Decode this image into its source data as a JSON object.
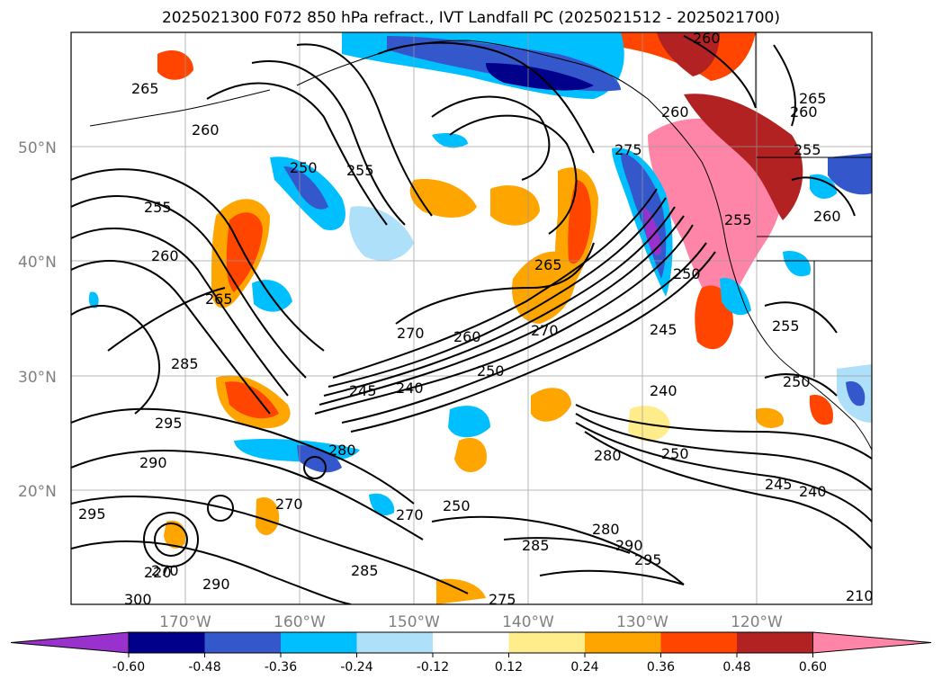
{
  "title": "2025021300 F072 850 hPa refract., IVT Landfall PC (2025021512 - 2025021700)",
  "map": {
    "lat_labels": [
      "50°N",
      "40°N",
      "30°N",
      "20°N"
    ],
    "lon_labels": [
      "170°W",
      "160°W",
      "150°W",
      "140°W",
      "130°W",
      "120°W"
    ],
    "grid": true,
    "contour_labels": [
      "265",
      "260",
      "250",
      "255",
      "255",
      "260",
      "265",
      "285",
      "295",
      "290",
      "295",
      "270",
      "270",
      "290",
      "300",
      "280",
      "270",
      "270",
      "245",
      "240",
      "250",
      "260",
      "270",
      "265",
      "275",
      "260",
      "245",
      "240",
      "250",
      "260",
      "255",
      "260",
      "255",
      "250",
      "240",
      "245",
      "255",
      "250",
      "260",
      "265",
      "280",
      "290",
      "285",
      "295",
      "280",
      "275",
      "285",
      "210",
      "220",
      "250"
    ]
  },
  "colorbar": {
    "ticks": [
      "-0.60",
      "-0.48",
      "-0.36",
      "-0.24",
      "-0.12",
      "0.12",
      "0.24",
      "0.36",
      "0.48",
      "0.60"
    ],
    "colors": [
      "#9932cc",
      "#00008b",
      "#3557cc",
      "#00bfff",
      "#afe0fa",
      "#ffffff",
      "#ffec8b",
      "#ffa500",
      "#ff4500",
      "#b22222",
      "#ff85a8"
    ],
    "extend": "both"
  }
}
